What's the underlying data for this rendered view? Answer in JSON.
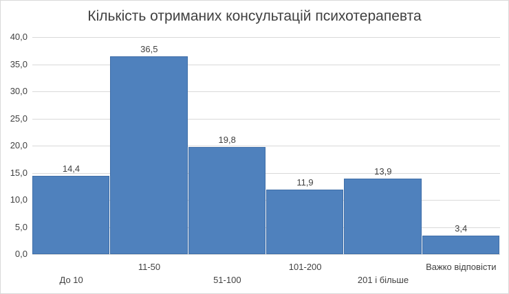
{
  "chart_data": {
    "type": "bar",
    "title": "Кількість отриманих консультацій психотерапевта",
    "categories": [
      "До 10",
      "11-50",
      "51-100",
      "101-200",
      "201 і більше",
      "Важко відповісти"
    ],
    "values": [
      14.4,
      36.5,
      19.8,
      11.9,
      13.9,
      3.4
    ],
    "value_labels": [
      "14,4",
      "36,5",
      "19,8",
      "11,9",
      "13,9",
      "3,4"
    ],
    "xlabel": "",
    "ylabel": "",
    "ylim": [
      0,
      40
    ],
    "yticks": [
      "0,0",
      "5,0",
      "10,0",
      "15,0",
      "20,0",
      "25,0",
      "30,0",
      "35,0",
      "40,0"
    ],
    "grid": true,
    "legend": "none",
    "bar_color": "#4f81bd"
  }
}
